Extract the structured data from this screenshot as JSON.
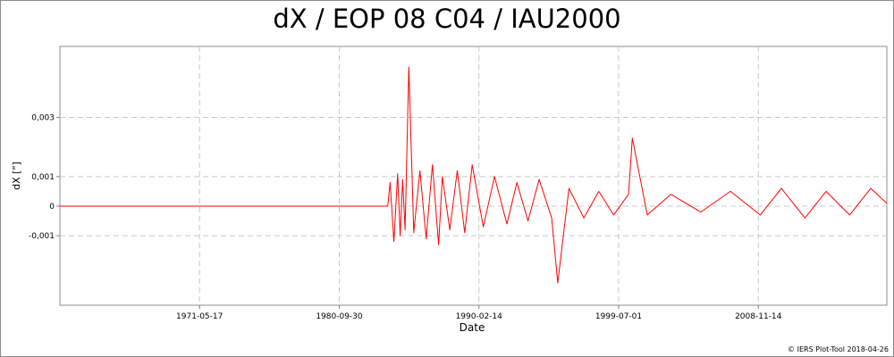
{
  "chart_data": {
    "type": "line",
    "title": "dX / EOP 08 C04 / IAU2000",
    "xlabel": "Date",
    "ylabel": "dX [\"]",
    "x_tick_labels": [
      "1971-05-17",
      "1980-09-30",
      "1990-02-14",
      "1999-07-01",
      "2008-11-14"
    ],
    "y_tick_labels": [
      "0,003",
      "0,001",
      "0",
      "-0,001"
    ],
    "y_ticks": [
      0.003,
      0.001,
      0,
      -0.001
    ],
    "xlim": [
      "1962-01-01",
      "2017-06-30"
    ],
    "ylim": [
      -0.00335,
      0.0054
    ],
    "grid": true,
    "series": [
      {
        "color": "#ff0000",
        "x": [
          "1962-01-01",
          "1984-01-01",
          "1984-03-01",
          "1984-06-01",
          "1984-09-01",
          "1984-11-01",
          "1985-01-01",
          "1985-03-01",
          "1985-06-01",
          "1985-10-01",
          "1986-03-01",
          "1986-08-01",
          "1987-01-01",
          "1987-06-01",
          "1987-09-01",
          "1988-03-01",
          "1988-09-01",
          "1989-03-01",
          "1989-09-01",
          "1990-06-01",
          "1991-03-01",
          "1992-01-01",
          "1992-09-01",
          "1993-06-01",
          "1994-03-01",
          "1995-01-01",
          "1995-06-01",
          "1996-03-01",
          "1997-03-01",
          "1998-03-01",
          "1999-03-01",
          "2000-03-01",
          "2000-06-01",
          "2001-06-01",
          "2003-01-01",
          "2005-01-01",
          "2007-01-01",
          "2009-01-01",
          "2010-06-01",
          "2012-01-01",
          "2013-06-01",
          "2015-01-01",
          "2016-06-01",
          "2017-06-30"
        ],
        "values": [
          0,
          0,
          0.0008,
          -0.0012,
          0.0011,
          -0.001,
          0.0009,
          -0.0008,
          0.0047,
          -0.0009,
          0.0012,
          -0.0011,
          0.0014,
          -0.0013,
          0.001,
          -0.0008,
          0.0012,
          -0.0009,
          0.0014,
          -0.0007,
          0.001,
          -0.0006,
          0.0008,
          -0.0005,
          0.0009,
          -0.0004,
          -0.0026,
          0.0006,
          -0.0004,
          0.0005,
          -0.0003,
          0.0004,
          0.0023,
          -0.0003,
          0.0004,
          -0.0002,
          0.0005,
          -0.0003,
          0.0006,
          -0.0004,
          0.0005,
          -0.0003,
          0.0006,
          0.0001
        ]
      }
    ]
  },
  "copyright": "© IERS Plot-Tool 2018-04-26"
}
